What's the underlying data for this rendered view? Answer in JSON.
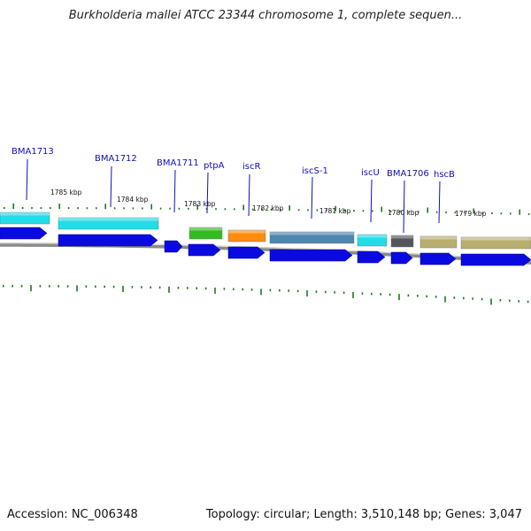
{
  "title": "Burkholderia mallei ATCC 23344 chromosome 1, complete sequen...",
  "accession": "Accession: NC_006348",
  "summary": "Topology: circular; Length: 3,510,148 bp; Genes: 3,047",
  "colors": {
    "label": "#1010b8",
    "tick": "#1a7a1a",
    "cds_blue": "#0a0ae0",
    "backbone": "#8a8a8a",
    "cyan": "#22dde8",
    "green": "#33bb22",
    "orange": "#ff8c10",
    "steel": "#4f86b0",
    "gray": "#555560",
    "khaki": "#b8ae70"
  },
  "kbp_labels": [
    "1785 kbp",
    "1784 kbp",
    "1783 kbp",
    "1782 kbp",
    "1781 kbp",
    "1780 kbp",
    "1779 kbp"
  ],
  "gene_labels": [
    "BMA1713",
    "BMA1712",
    "BMA1711",
    "ptpA",
    "iscR",
    "iscS-1",
    "iscU",
    "BMA1706",
    "hscB"
  ]
}
